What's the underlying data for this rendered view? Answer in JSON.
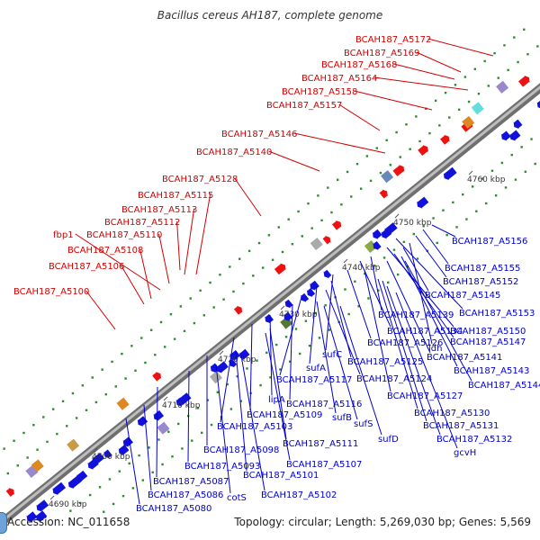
{
  "title": "Bacillus cereus AH187, complete genome",
  "accession_label": "Accession: NC_011658",
  "summary": "Topology: circular; Length: 5,269,030 bp; Genes: 5,569",
  "scale_ticks": [
    {
      "kbp": 4690,
      "label": "4690 kbp"
    },
    {
      "kbp": 4700,
      "label": "4700 kbp"
    },
    {
      "kbp": 4710,
      "label": "4710 kbp"
    },
    {
      "kbp": 4720,
      "label": "4720 kbp"
    },
    {
      "kbp": 4730,
      "label": "4730 kbp"
    },
    {
      "kbp": 4740,
      "label": "4740 kbp"
    },
    {
      "kbp": 4750,
      "label": "4750 kbp"
    },
    {
      "kbp": 4760,
      "label": "4760 kbp"
    }
  ],
  "forward_gene_labels": [
    "BCAH187_A5172",
    "BCAH187_A5169",
    "BCAH187_A5168",
    "BCAH187_A5164",
    "BCAH187_A5158",
    "BCAH187_A5157",
    "BCAH187_A5146",
    "BCAH187_A5140",
    "BCAH187_A5128",
    "BCAH187_A5115",
    "BCAH187_A5113",
    "BCAH187_A5112",
    "BCAH187_A5110",
    "fbp1",
    "BCAH187_A5108",
    "BCAH187_A5106",
    "BCAH187_A5100"
  ],
  "reverse_gene_labels": [
    "BCAH187_A5156",
    "BCAH187_A5155",
    "BCAH187_A5152",
    "BCAH187_A5145",
    "BCAH187_A5153",
    "BCAH187_A5139",
    "BCAH187_A5134",
    "BCAH187_A5150",
    "BCAH187_A5126",
    "ldh",
    "BCAH187_A5147",
    "sufC",
    "BCAH187_A5141",
    "BCAH187_A5125",
    "sufA",
    "BCAH187_A5143",
    "BCAH187_A5117",
    "BCAH187_A5124",
    "BCAH187_A5144",
    "lipA",
    "BCAH187_A5116",
    "BCAH187_A5127",
    "BCAH187_A5109",
    "sufB",
    "BCAH187_A5130",
    "BCAH187_A5103",
    "sufS",
    "BCAH187_A5131",
    "BCAH187_A5111",
    "sufD",
    "BCAH187_A5132",
    "BCAH187_A5098",
    "BCAH187_A5107",
    "gcvH",
    "BCAH187_A5093",
    "BCAH187_A5101",
    "BCAH187_A5087",
    "BCAH187_A5102",
    "BCAH187_A5086",
    "cotS",
    "BCAH187_A5080"
  ],
  "colors": {
    "forward_label": "#d40000",
    "reverse_label": "#0000cc",
    "forward_gene": "#ee1111",
    "reverse_gene": "#1111dd",
    "backbone": "#8a8a8a",
    "dots": "#2e8b2e"
  }
}
